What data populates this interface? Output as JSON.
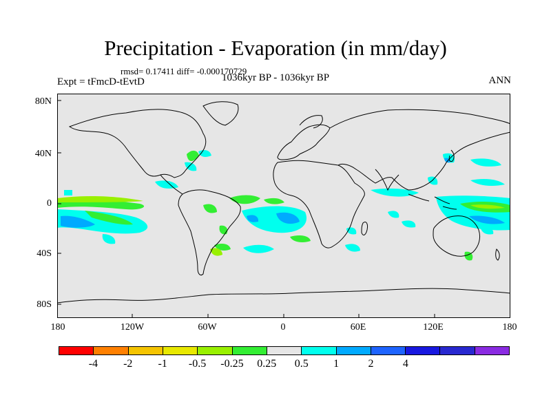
{
  "title": "Precipitation - Evaporation (in mm/day)",
  "stats": "rmsd= 0.17411 diff= -0.000170729",
  "experiment": "Expt = tFmcD-tEvtD",
  "period": "1036kyr BP - 1036kyr BP",
  "season": "ANN",
  "lat_labels": [
    "80N",
    "40N",
    "0",
    "40S",
    "80S"
  ],
  "lon_labels": [
    "180",
    "120W",
    "60W",
    "0",
    "60E",
    "120E",
    "180"
  ],
  "colorbar": {
    "colors": [
      "#ff0000",
      "#ff8000",
      "#f5c400",
      "#e8e800",
      "#99f000",
      "#33ee33",
      "#e6e6e6",
      "#00ffee",
      "#00aaff",
      "#1e64ff",
      "#1818e0",
      "#2828d0",
      "#8a2be2"
    ],
    "labels": [
      "-4",
      "-2",
      "-1",
      "-0.5",
      "-0.25",
      "0.25",
      "0.5",
      "1",
      "2",
      "4"
    ]
  },
  "colors": {
    "land_ocean_bg": "#e6e6e6",
    "coast": "#000000",
    "wet_cyan": "#00ffee",
    "wet_blue": "#00aaff",
    "dry_green": "#33ee33",
    "dry_lime": "#99f000"
  }
}
